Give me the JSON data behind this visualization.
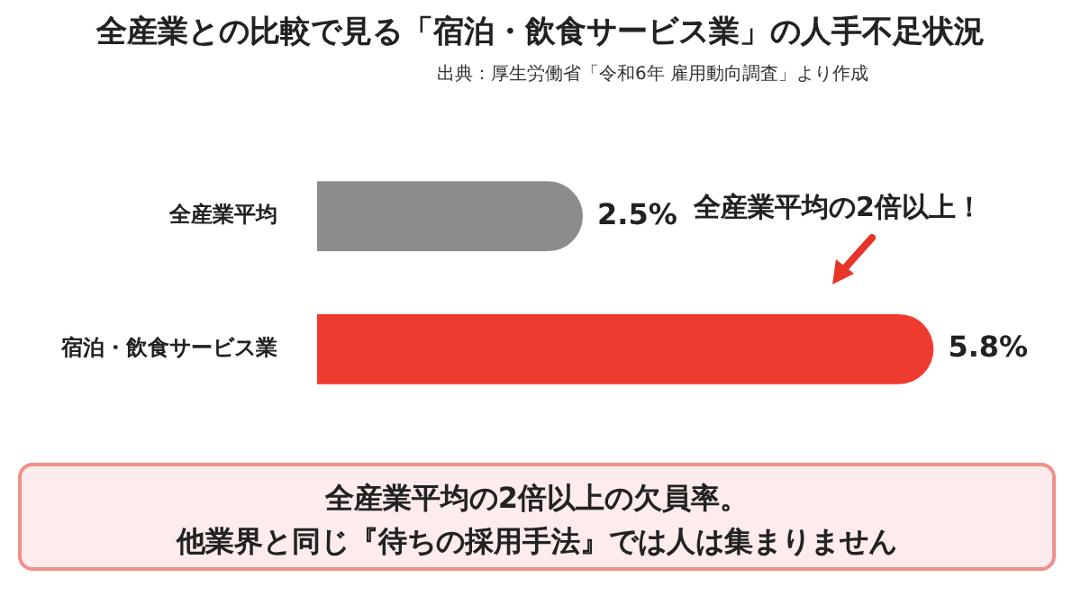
{
  "chart_data": {
    "type": "bar",
    "orientation": "horizontal",
    "title": "全産業との比較で見る「宿泊・飲食サービス業」の人手不足状況",
    "subtitle": "出典：厚生労働省「令和6年 雇用動向調査」より作成",
    "categories": [
      "全産業平均",
      "宿泊・飲食サービス業"
    ],
    "values": [
      2.5,
      5.8
    ],
    "value_labels": [
      "2.5%",
      "5.8%"
    ],
    "colors": [
      "#8c8c8c",
      "#ef3b2f"
    ],
    "annotations": [
      "全産業平均の2倍以上！",
      "全産業平均の2倍以上の欠員率。",
      "他業界と同じ『待ちの採用手法』では人は集まりません"
    ]
  }
}
